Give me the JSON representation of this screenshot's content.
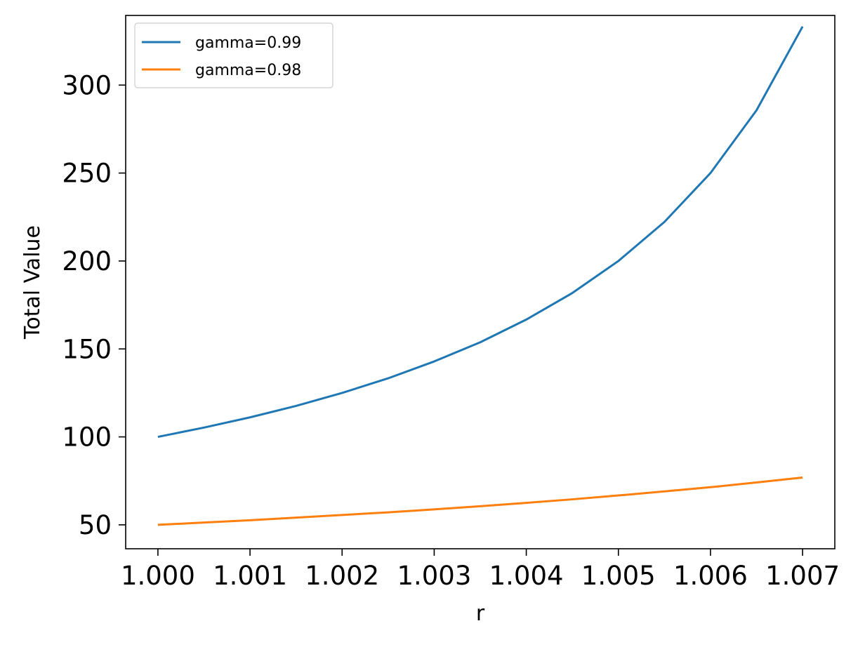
{
  "chart_data": {
    "type": "line",
    "title": "",
    "xlabel": "r",
    "ylabel": "Total Value",
    "xlim": [
      0.99965,
      1.00735
    ],
    "ylim": [
      36.4,
      339.6
    ],
    "xticks": [
      1.0,
      1.001,
      1.002,
      1.003,
      1.004,
      1.005,
      1.006,
      1.007
    ],
    "xtick_labels": [
      "1.000",
      "1.001",
      "1.002",
      "1.003",
      "1.004",
      "1.005",
      "1.006",
      "1.007"
    ],
    "yticks": [
      50,
      100,
      150,
      200,
      250,
      300
    ],
    "ytick_labels": [
      "50",
      "100",
      "150",
      "200",
      "250",
      "300"
    ],
    "grid": false,
    "legend_position": "top-left",
    "x": [
      1.0,
      1.0005,
      1.001,
      1.0015,
      1.002,
      1.0025,
      1.003,
      1.0035,
      1.004,
      1.0045,
      1.005,
      1.0055,
      1.006,
      1.0065,
      1.007
    ],
    "series": [
      {
        "name": "gamma=0.99",
        "color": "#1f77b4",
        "values": [
          100.0,
          105.3,
          111.1,
          117.6,
          125.0,
          133.3,
          142.9,
          153.8,
          166.7,
          181.8,
          200.0,
          222.2,
          250.0,
          285.7,
          333.3
        ]
      },
      {
        "name": "gamma=0.98",
        "color": "#ff7f0e",
        "values": [
          50.0,
          51.3,
          52.6,
          54.1,
          55.6,
          57.1,
          58.8,
          60.6,
          62.5,
          64.5,
          66.7,
          69.0,
          71.4,
          74.1,
          76.9
        ]
      }
    ]
  }
}
